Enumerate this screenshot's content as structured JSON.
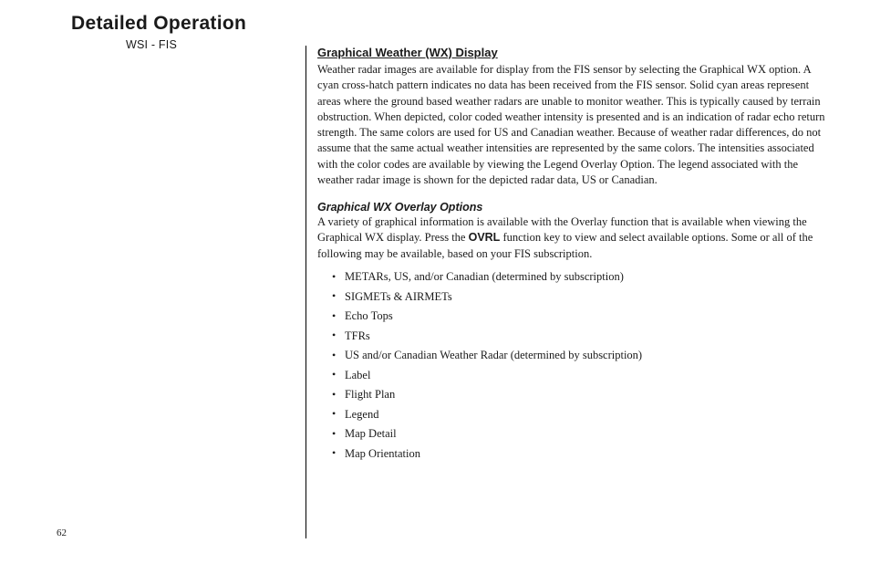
{
  "header": {
    "title": "Detailed Operation",
    "subtitle": "WSI - FIS"
  },
  "page_number": "62",
  "section1": {
    "heading": "Graphical Weather (WX) Display",
    "body": "Weather radar images are available for display from the FIS sensor by selecting the Graphical WX option. A cyan cross-hatch pattern indicates no data has been received from the FIS sensor. Solid cyan areas represent areas where the ground based weather radars are unable to monitor weather. This is typically caused by terrain obstruction. When depicted, color coded weather intensity is presented and is an indication of radar echo return strength. The same colors are used for US and Canadian weather. Because of weather radar differences, do not assume that the same actual weather intensities are represented by the same colors. The intensities associated with the color codes are available by viewing the Legend Overlay Option. The legend associated with the weather radar image is shown for the depicted radar data, US or Canadian."
  },
  "section2": {
    "heading": "Graphical WX Overlay Options",
    "body_pre": "A variety of graphical information is available with the Overlay function that is available when viewing the Graphical WX display. Press the ",
    "body_emph": "OVRL",
    "body_post": " function key to view and select available options. Some or all of the following may be available, based on your FIS subscription.",
    "bullets": [
      "METARs, US, and/or Canadian (determined by subscription)",
      "SIGMETs & AIRMETs",
      "Echo Tops",
      "TFRs",
      "US and/or Canadian Weather Radar (determined by subscription)",
      "Label",
      "Flight Plan",
      "Legend",
      "Map Detail",
      "Map Orientation"
    ]
  }
}
